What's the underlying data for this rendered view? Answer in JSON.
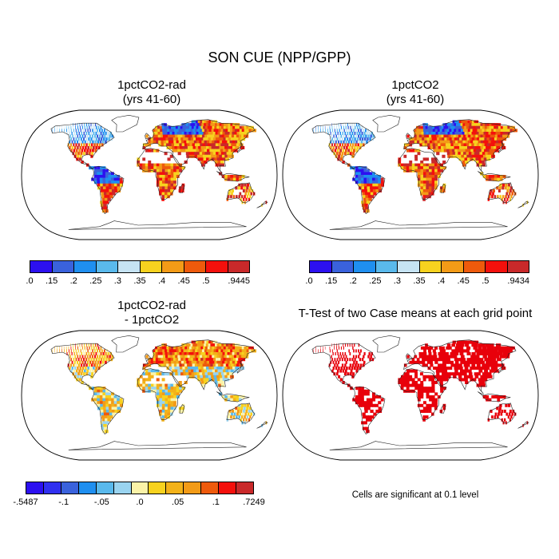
{
  "figure": {
    "title": "SON CUE (NPP/GPP)"
  },
  "panels": [
    {
      "id": "p1",
      "title_line1": "1pctCO2-rad",
      "title_line2": "(yrs 41-60)",
      "colorbar": {
        "labels": [
          ".0",
          ".15",
          ".2",
          ".25",
          ".3",
          ".35",
          ".4",
          ".45",
          ".5",
          ".9445"
        ],
        "colors": [
          "#2c10f0",
          "#3a62dc",
          "#1f8ff0",
          "#5ab9ec",
          "#c6e3f3",
          "#f7d21f",
          "#f39b17",
          "#ee5a0c",
          "#f4100c",
          "#c9292a"
        ]
      }
    },
    {
      "id": "p2",
      "title_line1": "1pctCO2",
      "title_line2": "(yrs 41-60)",
      "colorbar": {
        "labels": [
          ".0",
          ".15",
          ".2",
          ".25",
          ".3",
          ".35",
          ".4",
          ".45",
          ".5",
          ".9434"
        ],
        "colors": [
          "#2c10f0",
          "#3a62dc",
          "#1f8ff0",
          "#5ab9ec",
          "#c6e3f3",
          "#f7d21f",
          "#f39b17",
          "#ee5a0c",
          "#f4100c",
          "#c9292a"
        ]
      }
    },
    {
      "id": "p3",
      "title_line1": "1pctCO2-rad",
      "title_line2": "- 1pctCO2",
      "colorbar": {
        "labels": [
          "-.5487",
          "-.1",
          "-.05",
          ".0",
          ".05",
          ".1",
          ".7249"
        ],
        "colors": [
          "#2c10f0",
          "#3030f0",
          "#3a62dc",
          "#1f8ff0",
          "#5ab9ec",
          "#9ad4f0",
          "#fbf3a8",
          "#f7d21f",
          "#f3b21a",
          "#f39b17",
          "#ee5a0c",
          "#f4100c",
          "#c9292a"
        ]
      }
    },
    {
      "id": "p4",
      "title_line1": "T-Test of two Case means at each grid point",
      "note": "Cells are significant at 0.1 level",
      "fill_color": "#e8000b"
    }
  ]
}
